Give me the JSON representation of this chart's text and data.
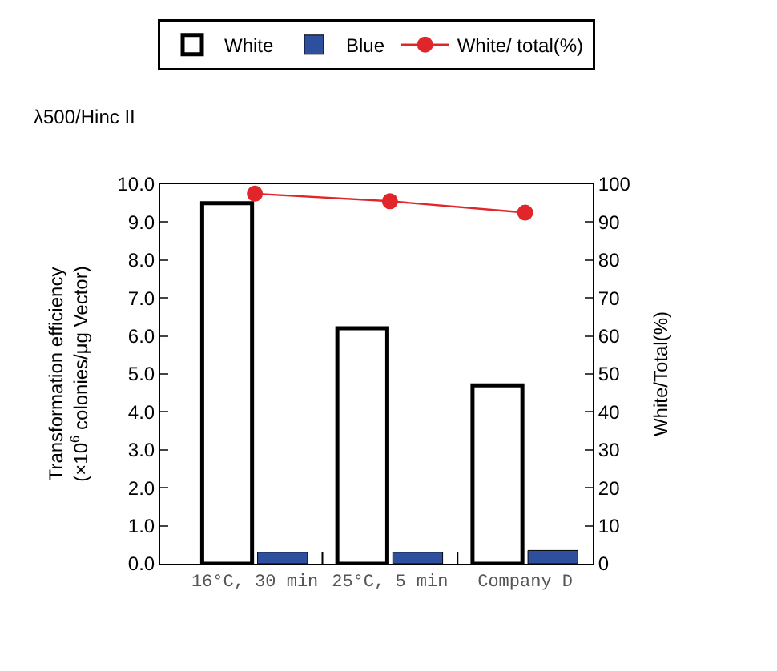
{
  "chart_data": {
    "type": "bar",
    "subtitle": "λ500/Hinc II",
    "ylabel": "Transformation efficiency\n(×10$^{6}$ colonies/μg Vector)",
    "y2label": "White/Total(%)",
    "categories": [
      "16°C, 30 min",
      "25°C, 5 min",
      "Company D"
    ],
    "series": [
      {
        "name": "White",
        "color": "#ffffff",
        "values": [
          9.5,
          6.2,
          4.7
        ]
      },
      {
        "name": "Blue",
        "color": "#2e4f9e",
        "values": [
          0.3,
          0.3,
          0.35
        ]
      },
      {
        "name": "White/ total(%)",
        "type": "line",
        "axis": "y2",
        "marker": "circle",
        "color": "#e0262b",
        "values": [
          97.5,
          95.5,
          92.5
        ]
      }
    ],
    "ylim": [
      0,
      10
    ],
    "yticks": [
      {
        "value": 0,
        "label": "0.0"
      },
      {
        "value": 1,
        "label": "1.0"
      },
      {
        "value": 2,
        "label": "2.0"
      },
      {
        "value": 3,
        "label": "3.0"
      },
      {
        "value": 4,
        "label": "4.0"
      },
      {
        "value": 5,
        "label": "5.0"
      },
      {
        "value": 6,
        "label": "6.0"
      },
      {
        "value": 7,
        "label": "7.0"
      },
      {
        "value": 8,
        "label": "8.0"
      },
      {
        "value": 9,
        "label": "9.0"
      },
      {
        "value": 10,
        "label": "10.0"
      }
    ],
    "y2lim": [
      0,
      100
    ],
    "y2ticks": [
      0,
      10,
      20,
      30,
      40,
      50,
      60,
      70,
      80,
      90,
      100
    ],
    "legend": "top"
  }
}
